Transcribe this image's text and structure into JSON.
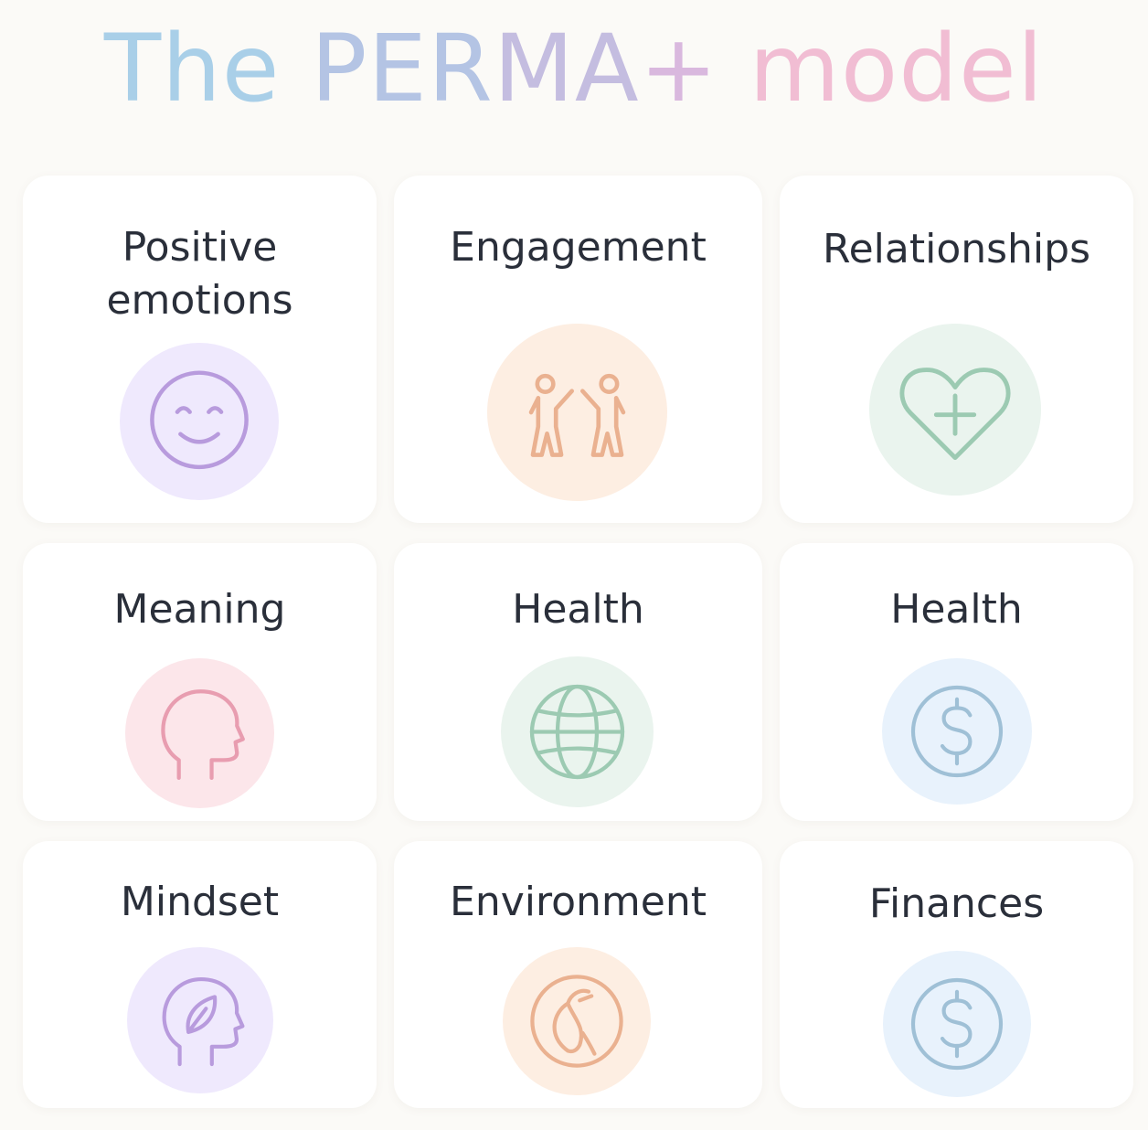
{
  "title": {
    "part_a": "The",
    "part_b": "PER",
    "part_c": "MA",
    "part_d": "+",
    "part_e": "model"
  },
  "cards": [
    {
      "label": "Positive emotions",
      "icon": "smiley-face-icon",
      "badge_color": "#efe9fd",
      "stroke_color": "#b89bdd"
    },
    {
      "label": "Engagement",
      "icon": "two-people-high-five-icon",
      "badge_color": "#fdeee2",
      "stroke_color": "#eab190"
    },
    {
      "label": "Relationships",
      "icon": "heart-plus-icon",
      "badge_color": "#eaf4ee",
      "stroke_color": "#9ccab2"
    },
    {
      "label": "Meaning",
      "icon": "head-profile-icon",
      "badge_color": "#fce6ea",
      "stroke_color": "#e89db0"
    },
    {
      "label": "Health",
      "icon": "globe-icon",
      "badge_color": "#eaf4ee",
      "stroke_color": "#9ccab2"
    },
    {
      "label": "Health",
      "icon": "dollar-coin-icon",
      "badge_color": "#e8f2fc",
      "stroke_color": "#9fc0d6"
    },
    {
      "label": "Mindset",
      "icon": "head-with-leaf-icon",
      "badge_color": "#efe9fd",
      "stroke_color": "#b89bdd"
    },
    {
      "label": "Environment",
      "icon": "leaf-in-circle-icon",
      "badge_color": "#fdeee2",
      "stroke_color": "#eab190"
    },
    {
      "label": "Finances",
      "icon": "dollar-coin-icon",
      "badge_color": "#e8f2fc",
      "stroke_color": "#9fc0d6"
    }
  ]
}
